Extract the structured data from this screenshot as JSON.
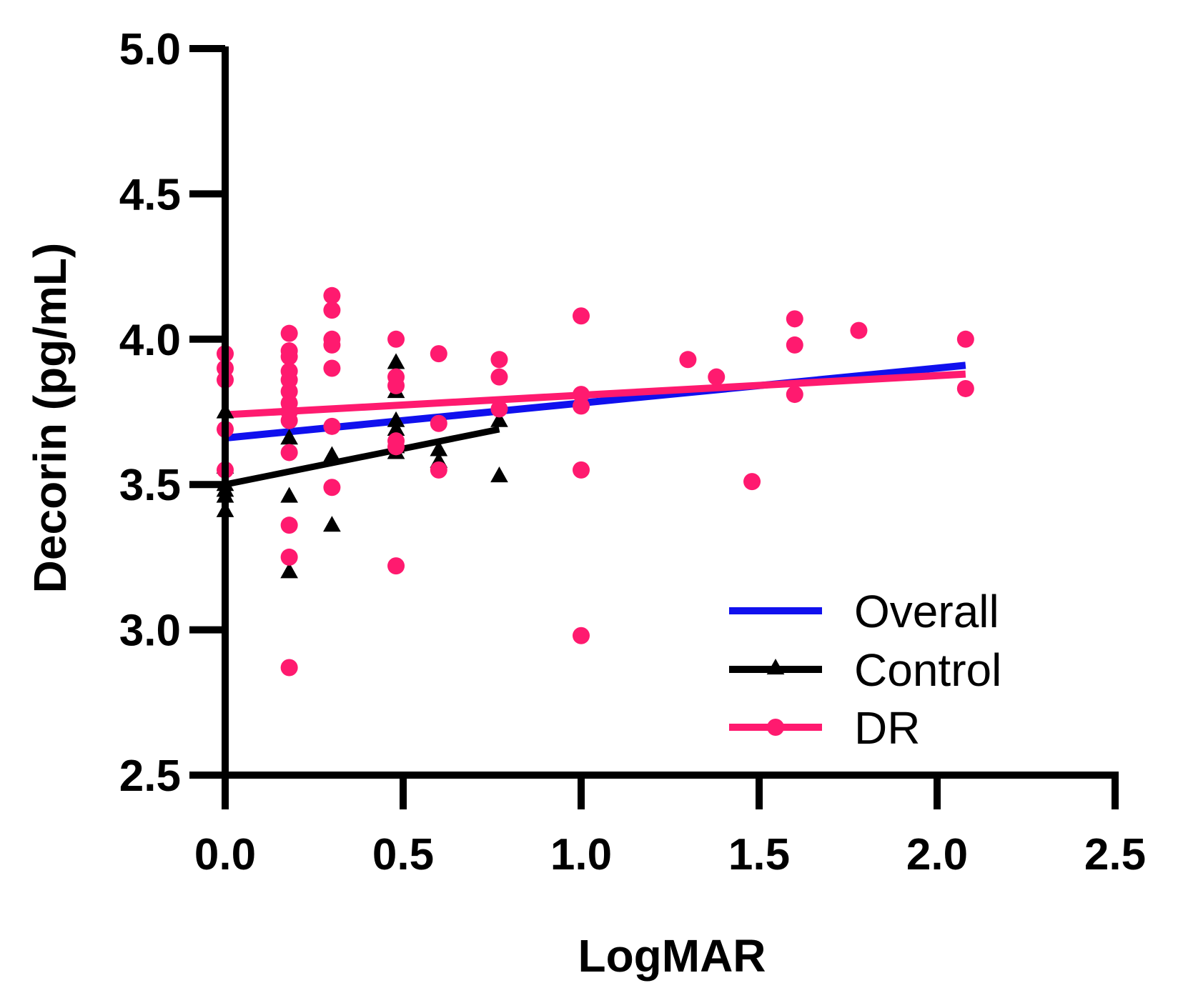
{
  "chart_data": {
    "type": "scatter",
    "xlabel": "LogMAR",
    "ylabel": "Decorin (pg/mL)",
    "xlim": [
      0.0,
      2.5
    ],
    "ylim": [
      2.5,
      5.0
    ],
    "x_ticks": [
      "0.0",
      "0.5",
      "1.0",
      "1.5",
      "2.0",
      "2.5"
    ],
    "y_ticks": [
      "2.5",
      "3.0",
      "3.5",
      "4.0",
      "4.5",
      "5.0"
    ],
    "grid": false,
    "legend_position": "lower-right",
    "series": [
      {
        "name": "Overall",
        "kind": "fit-line",
        "color": "#1010ee",
        "line": [
          [
            0.0,
            3.66
          ],
          [
            2.08,
            3.91
          ]
        ]
      },
      {
        "name": "Control",
        "kind": "scatter-with-fit",
        "color": "#000000",
        "marker": "triangle",
        "line": [
          [
            0.0,
            3.5
          ],
          [
            0.77,
            3.69
          ]
        ],
        "points": [
          [
            0.0,
            3.75
          ],
          [
            0.0,
            3.56
          ],
          [
            0.0,
            3.5
          ],
          [
            0.0,
            3.48
          ],
          [
            0.0,
            3.46
          ],
          [
            0.0,
            3.41
          ],
          [
            0.18,
            3.66
          ],
          [
            0.18,
            3.46
          ],
          [
            0.18,
            3.2
          ],
          [
            0.3,
            3.6
          ],
          [
            0.3,
            3.36
          ],
          [
            0.48,
            3.92
          ],
          [
            0.48,
            3.82
          ],
          [
            0.48,
            3.72
          ],
          [
            0.48,
            3.69
          ],
          [
            0.48,
            3.63
          ],
          [
            0.48,
            3.61
          ],
          [
            0.6,
            3.62
          ],
          [
            0.6,
            3.58
          ],
          [
            0.77,
            3.72
          ],
          [
            0.77,
            3.53
          ]
        ]
      },
      {
        "name": "DR",
        "kind": "scatter-with-fit",
        "color": "#ff1a6f",
        "marker": "circle",
        "line": [
          [
            0.0,
            3.74
          ],
          [
            2.08,
            3.88
          ]
        ],
        "points": [
          [
            0.0,
            3.95
          ],
          [
            0.0,
            3.9
          ],
          [
            0.0,
            3.86
          ],
          [
            0.0,
            3.69
          ],
          [
            0.0,
            3.55
          ],
          [
            0.18,
            4.02
          ],
          [
            0.18,
            3.96
          ],
          [
            0.18,
            3.94
          ],
          [
            0.18,
            3.89
          ],
          [
            0.18,
            3.86
          ],
          [
            0.18,
            3.82
          ],
          [
            0.18,
            3.78
          ],
          [
            0.18,
            3.75
          ],
          [
            0.18,
            3.72
          ],
          [
            0.18,
            3.61
          ],
          [
            0.18,
            3.36
          ],
          [
            0.18,
            3.25
          ],
          [
            0.18,
            2.87
          ],
          [
            0.3,
            4.15
          ],
          [
            0.3,
            4.1
          ],
          [
            0.3,
            4.0
          ],
          [
            0.3,
            3.98
          ],
          [
            0.3,
            3.9
          ],
          [
            0.3,
            3.7
          ],
          [
            0.3,
            3.49
          ],
          [
            0.48,
            4.0
          ],
          [
            0.48,
            3.87
          ],
          [
            0.48,
            3.84
          ],
          [
            0.48,
            3.65
          ],
          [
            0.48,
            3.63
          ],
          [
            0.48,
            3.22
          ],
          [
            0.6,
            3.95
          ],
          [
            0.6,
            3.71
          ],
          [
            0.6,
            3.55
          ],
          [
            0.77,
            3.93
          ],
          [
            0.77,
            3.87
          ],
          [
            0.77,
            3.76
          ],
          [
            1.0,
            4.08
          ],
          [
            1.0,
            3.81
          ],
          [
            1.0,
            3.77
          ],
          [
            1.0,
            3.55
          ],
          [
            1.0,
            2.98
          ],
          [
            1.3,
            3.93
          ],
          [
            1.38,
            3.87
          ],
          [
            1.48,
            3.51
          ],
          [
            1.6,
            4.07
          ],
          [
            1.6,
            3.98
          ],
          [
            1.6,
            3.81
          ],
          [
            1.78,
            4.03
          ],
          [
            2.08,
            4.0
          ],
          [
            2.08,
            3.83
          ]
        ]
      }
    ]
  }
}
